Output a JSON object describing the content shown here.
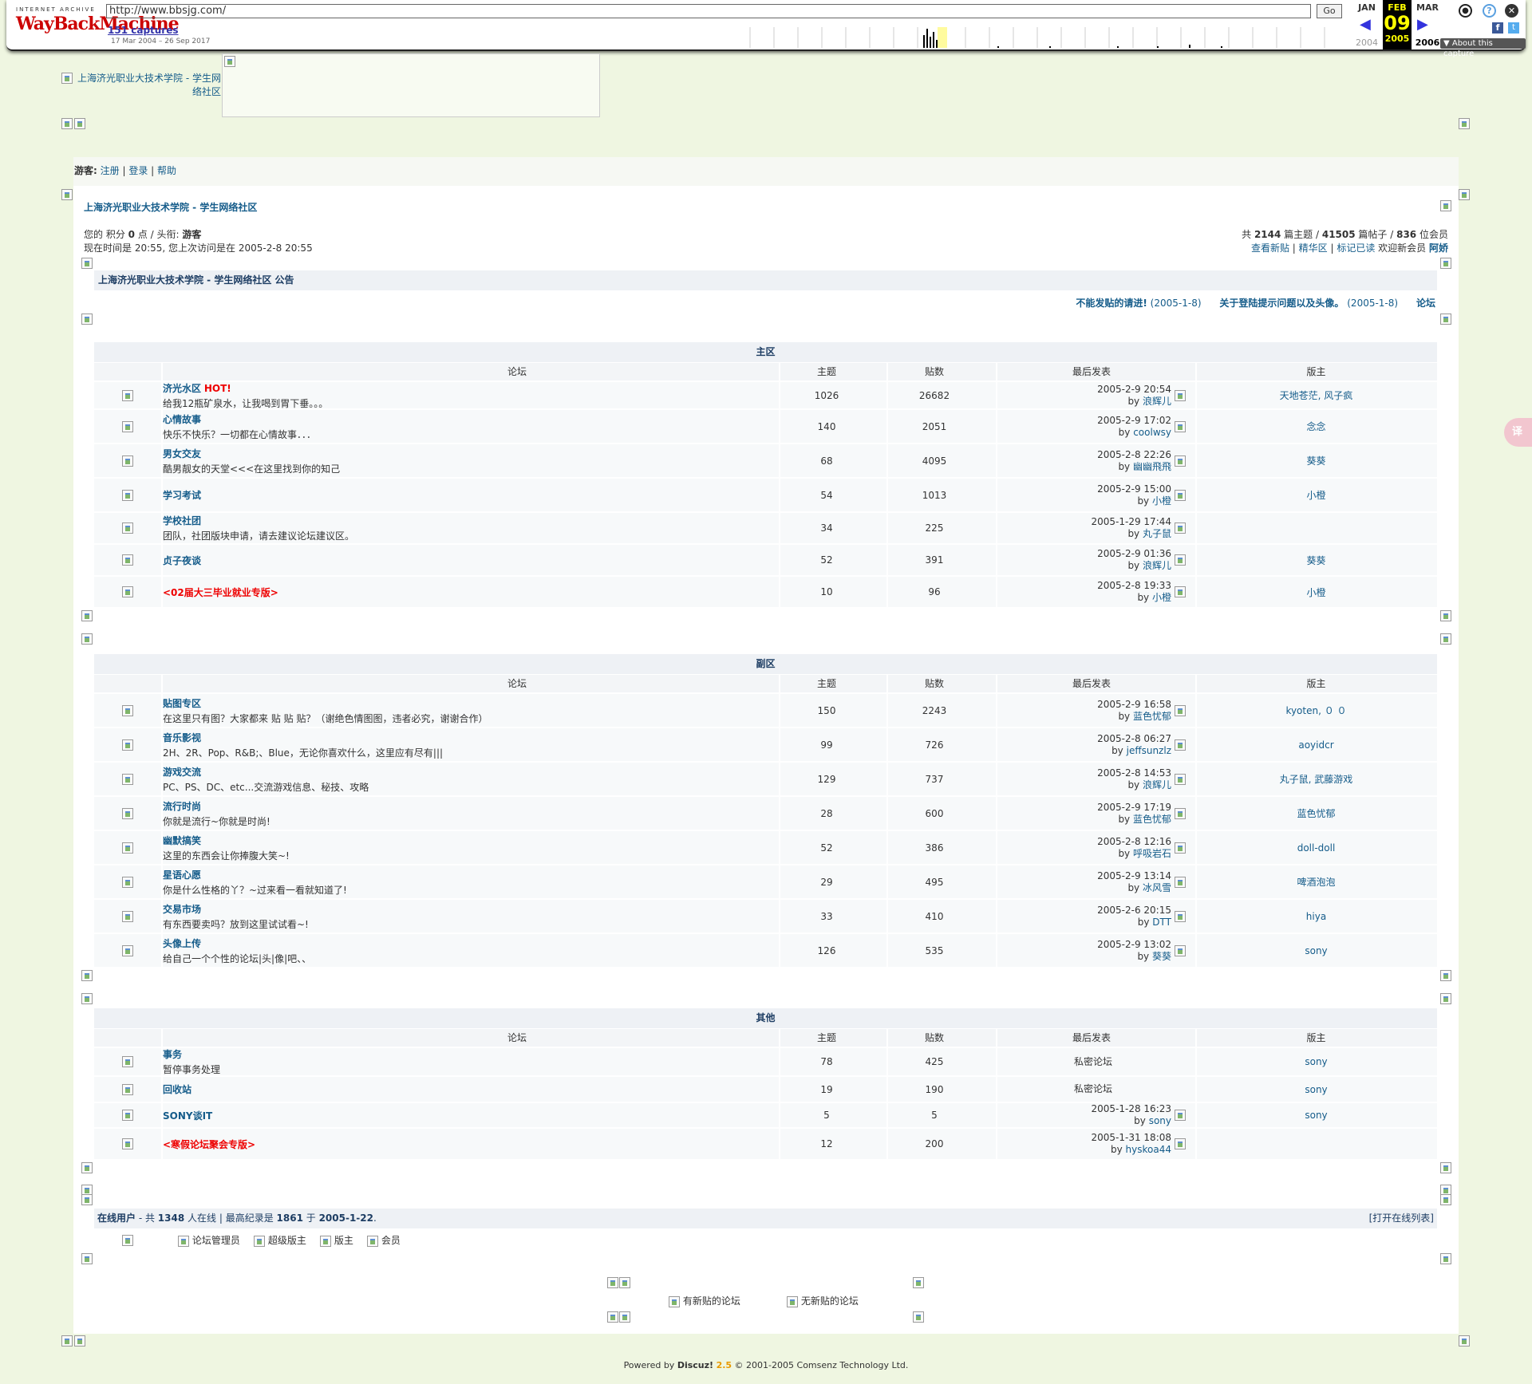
{
  "wayback": {
    "logo_top": "INTERNET ARCHIVE",
    "logo_main": "WayBackMachine",
    "url": "http://www.bbsjg.com/",
    "go": "Go",
    "captures": "151 captures",
    "range": "17 Mar 2004 – 26 Sep 2017",
    "months": {
      "prev": "JAN",
      "cur": "FEB",
      "next": "MAR"
    },
    "day": "09",
    "years": {
      "prev": "2004",
      "cur": "2005",
      "next": "2006"
    },
    "about": "▼ About this capture"
  },
  "logo_alt": "上海济光职业大技术学院 - 学生网络社区",
  "guestbar": {
    "guest": "游客:",
    "register": "注册",
    "login": "登录",
    "help": "帮助"
  },
  "site_title": "上海济光职业大技术学院 - 学生网络社区",
  "userinfo": {
    "line1_a": "您的 积分 ",
    "points": "0",
    "line1_b": " 点 / 头衔: ",
    "rank": "游客",
    "line2": "现在时间是 20:55, 您上次访问是在 2005-2-8 20:55"
  },
  "stats": {
    "a": "共 ",
    "threads": "2144",
    "b": " 篇主题 / ",
    "posts": "41505",
    "c": " 篇帖子 / ",
    "members": "836",
    "d": " 位会员",
    "new_posts": "查看新贴",
    "digest": "精华区",
    "mark_read": "标记已读",
    "welcome": " 欢迎新会员 ",
    "newest": "阿娇"
  },
  "announce": {
    "title": "上海济光职业大技术学院 - 学生网络社区 公告",
    "item1": "不能发贴的请进!",
    "item1_date": "(2005-1-8)",
    "item2": "关于登陆提示问题以及头像。",
    "item2_date": "(2005-1-8)",
    "item3": "论坛"
  },
  "columns": {
    "forum": "论坛",
    "topics": "主题",
    "posts": "贴数",
    "last": "最后发表",
    "mod": "版主"
  },
  "sections": [
    {
      "name": "主区",
      "forums": [
        {
          "name": "济光水区",
          "hot": "HOT!",
          "desc": "给我12瓶矿泉水，让我喝到胃下垂。。。",
          "topics": "1026",
          "posts": "26682",
          "last_time": "2005-2-9 20:54",
          "last_by": "浪辉儿",
          "mods": "天地苍茫, 风子疯"
        },
        {
          "name": "心情故事",
          "desc": "快乐不快乐？一切都在心情故事．．．",
          "topics": "140",
          "posts": "2051",
          "last_time": "2005-2-9 17:02",
          "last_by": "coolwsy",
          "mods": "念念"
        },
        {
          "name": "男女交友",
          "desc": "酷男靓女的天堂<<<在这里找到你的知己",
          "topics": "68",
          "posts": "4095",
          "last_time": "2005-2-8 22:26",
          "last_by": "幽幽飛飛",
          "mods": "葵葵"
        },
        {
          "name": "学习考试",
          "desc": "",
          "topics": "54",
          "posts": "1013",
          "last_time": "2005-2-9 15:00",
          "last_by": "小橙",
          "mods": "小橙"
        },
        {
          "name": "学校社团",
          "desc": "团队，社团版块申请，请去建议论坛建议区。",
          "topics": "34",
          "posts": "225",
          "last_time": "2005-1-29 17:44",
          "last_by": "丸子鼠",
          "mods": ""
        },
        {
          "name": "贞子夜谈",
          "desc": "",
          "topics": "52",
          "posts": "391",
          "last_time": "2005-2-9 01:36",
          "last_by": "浪辉儿",
          "mods": "葵葵"
        },
        {
          "name": "<02届大三毕业就业专版>",
          "red": true,
          "desc": "",
          "topics": "10",
          "posts": "96",
          "last_time": "2005-2-8 19:33",
          "last_by": "小橙",
          "mods": "小橙"
        }
      ]
    },
    {
      "name": "副区",
      "forums": [
        {
          "name": "贴图专区",
          "desc": "在这里只有图？大家都来 贴 贴 贴？（谢绝色情图图，违者必究，谢谢合作）",
          "topics": "150",
          "posts": "2243",
          "last_time": "2005-2-9 16:58",
          "last_by": "蓝色忧郁",
          "mods": "kyoten, ０ ０"
        },
        {
          "name": "音乐影视",
          "desc": "2H、2R、Pop、R&B;、Blue，无论你喜欢什么，这里应有尽有|||",
          "topics": "99",
          "posts": "726",
          "last_time": "2005-2-8 06:27",
          "last_by": "jeffsunzlz",
          "mods": "aoyidcr"
        },
        {
          "name": "游戏交流",
          "desc": "PC、PS、DC、etc...交流游戏信息、秘技、攻略",
          "topics": "129",
          "posts": "737",
          "last_time": "2005-2-8 14:53",
          "last_by": "浪辉儿",
          "mods": "丸子鼠, 武藤游戏"
        },
        {
          "name": "流行时尚",
          "desc": "你就是流行~你就是时尚!",
          "topics": "28",
          "posts": "600",
          "last_time": "2005-2-9 17:19",
          "last_by": "蓝色忧郁",
          "mods": "蓝色忧郁"
        },
        {
          "name": "幽默搞笑",
          "desc": "这里的东西会让你捧腹大笑~!",
          "topics": "52",
          "posts": "386",
          "last_time": "2005-2-8 12:16",
          "last_by": "呼吸岩石",
          "mods": "doll-doll"
        },
        {
          "name": "星语心愿",
          "desc": "你是什么性格的丫？~过来看一看就知道了!",
          "topics": "29",
          "posts": "495",
          "last_time": "2005-2-9 13:14",
          "last_by": "冰风雪",
          "mods": "啤酒泡泡"
        },
        {
          "name": "交易市场",
          "desc": "有东西要卖吗？放到这里试试看~!",
          "topics": "33",
          "posts": "410",
          "last_time": "2005-2-6 20:15",
          "last_by": "DTT",
          "mods": "hiya"
        },
        {
          "name": "头像上传",
          "desc": "给自己一个个性的论坛|头|像|吧、、",
          "topics": "126",
          "posts": "535",
          "last_time": "2005-2-9 13:02",
          "last_by": "葵葵",
          "mods": "sony"
        }
      ]
    },
    {
      "name": "其他",
      "forums": [
        {
          "name": "事务",
          "desc": "暂停事务处理",
          "topics": "78",
          "posts": "425",
          "last_text": "私密论坛",
          "mods": "sony"
        },
        {
          "name": "回收站",
          "desc": "",
          "topics": "19",
          "posts": "190",
          "last_text": "私密论坛",
          "mods": "sony"
        },
        {
          "name": "SONY谈IT",
          "desc": "",
          "topics": "5",
          "posts": "5",
          "last_time": "2005-1-28 16:23",
          "last_by": "sony",
          "mods": "sony"
        },
        {
          "name": "<寒假论坛聚会专版>",
          "red": true,
          "desc": "",
          "topics": "12",
          "posts": "200",
          "last_time": "2005-1-31 18:08",
          "last_by": "hyskoa44",
          "mods": ""
        }
      ]
    }
  ],
  "online": {
    "label": "在线用户",
    "a": " - 共 ",
    "count": "1348",
    "b": " 人在线 | 最高纪录是 ",
    "max": "1861",
    "c": " 于 ",
    "date": "2005-1-22",
    "d": ".",
    "open": "[打开在线列表]"
  },
  "legend": {
    "admin": "论坛管理员",
    "supermod": "超级版主",
    "mod": "版主",
    "member": "会员"
  },
  "newposts": {
    "has": "有新贴的论坛",
    "none": "无新贴的论坛"
  },
  "footer": {
    "a": "Powered by ",
    "brand": "Discuz!",
    "ver": "2.5",
    "b": " © 2001-2005 Comsenz Technology Ltd."
  }
}
